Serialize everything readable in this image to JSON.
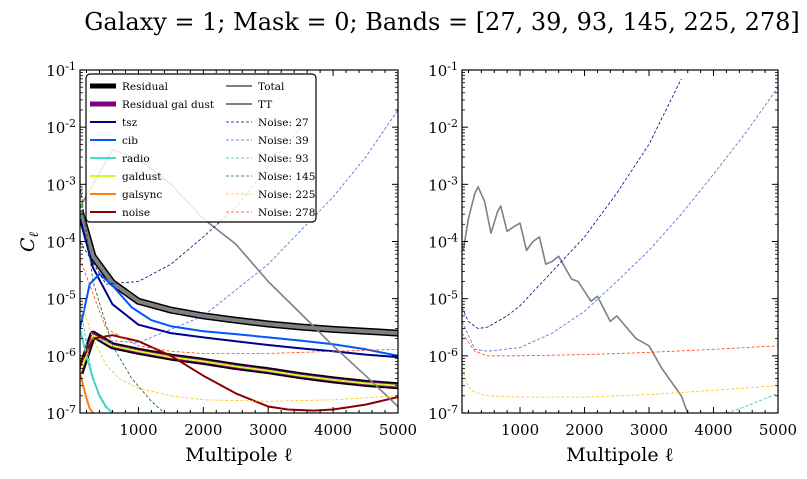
{
  "chart_data": {
    "type": "line",
    "title": "Galaxy = 1; Mask = 0; Bands = [27, 39, 93, 145, 225, 278]",
    "xlabel": "Multipole ℓ",
    "ylabel": "C_ℓ",
    "x_ticks": [
      1000,
      2000,
      3000,
      4000,
      5000
    ],
    "y_ticks": [
      "10^-7",
      "10^-6",
      "10^-5",
      "10^-4",
      "10^-3",
      "10^-2",
      "10^-1"
    ],
    "y_scale": "log",
    "xlim": [
      100,
      5000
    ],
    "ylim": [
      1e-07,
      0.1
    ],
    "legend_placement": "top-left",
    "panels": [
      {
        "series": [
          {
            "name": "Residual",
            "color": "#000000",
            "style": "thick",
            "x": [
              100,
              300,
              600,
              1000,
              1500,
              2000,
              2500,
              3000,
              3500,
              4000,
              4500,
              5000
            ],
            "y": [
              0.00035,
              5.5e-05,
              1.9e-05,
              9e-06,
              6.3e-06,
              5e-06,
              4.2e-06,
              3.6e-06,
              3.2e-06,
              2.9e-06,
              2.7e-06,
              2.5e-06
            ]
          },
          {
            "name": "Residual gal dust",
            "color": "#800080",
            "style": "thick",
            "x": [
              100,
              300,
              600,
              1000,
              1500,
              2000,
              2500,
              3000,
              3500,
              4000,
              4500,
              5000
            ],
            "y": [
              5e-07,
              2.4e-06,
              1.5e-06,
              1.2e-06,
              9.5e-07,
              8e-07,
              6.5e-07,
              5.5e-07,
              4.5e-07,
              3.8e-07,
              3.3e-07,
              3e-07
            ]
          },
          {
            "name": "tsz",
            "color": "#00008b",
            "x": [
              100,
              300,
              600,
              1000,
              1500,
              2000,
              2500,
              3000,
              3500,
              4000,
              4500,
              5000
            ],
            "y": [
              0.00025,
              3.5e-05,
              8e-06,
              3.5e-06,
              2.5e-06,
              2.1e-06,
              1.8e-06,
              1.55e-06,
              1.35e-06,
              1.2e-06,
              1.05e-06,
              9.5e-07
            ]
          },
          {
            "name": "cib",
            "color": "#0055ff",
            "x": [
              100,
              250,
              400,
              600,
              900,
              1200,
              1500,
              2000,
              2500,
              3000,
              3500,
              4000,
              4500,
              5000
            ],
            "y": [
              3e-06,
              1.8e-05,
              2.7e-05,
              1.7e-05,
              7e-06,
              4.2e-06,
              3.3e-06,
              2.7e-06,
              2.4e-06,
              2.1e-06,
              1.85e-06,
              1.6e-06,
              1.3e-06,
              1e-06
            ]
          },
          {
            "name": "radio",
            "color": "#40e0d0",
            "x": [
              100,
              200,
              300,
              400,
              500,
              600
            ],
            "y": [
              3e-06,
              1e-06,
              4e-07,
              2e-07,
              1.3e-07,
              1e-07
            ]
          },
          {
            "name": "galdust",
            "color": "#c8ff2a",
            "x": [
              100,
              300,
              600,
              1000,
              1500,
              2000,
              2500,
              3000,
              3500,
              4000,
              4500,
              5000
            ],
            "y": [
              5e-07,
              2.3e-06,
              1.5e-06,
              1.2e-06,
              9.5e-07,
              8e-07,
              6.5e-07,
              5.5e-07,
              4.5e-07,
              3.8e-07,
              3.3e-07,
              3e-07
            ]
          },
          {
            "name": "galsync",
            "color": "#ff7f0e",
            "x": [
              100,
              150,
              200,
              250,
              300
            ],
            "y": [
              5e-07,
              3e-07,
              1.8e-07,
              1.2e-07,
              1e-07
            ]
          },
          {
            "name": "noise",
            "color": "#8b0000",
            "x": [
              100,
              300,
              600,
              1000,
              1500,
              2000,
              2500,
              3000,
              3300,
              3700,
              4000,
              4500,
              5000
            ],
            "y": [
              7e-07,
              2e-06,
              2.3e-06,
              1.8e-06,
              1e-06,
              4.5e-07,
              2.2e-07,
              1.3e-07,
              1.15e-07,
              1.1e-07,
              1.15e-07,
              1.4e-07,
              1.9e-07
            ]
          },
          {
            "name": "Total",
            "color": "#808080",
            "x": [
              100,
              300,
              600,
              1000,
              1500,
              2000,
              2500,
              3000,
              3500,
              4000,
              4500,
              5000
            ],
            "y": [
              0.00035,
              5.5e-05,
              1.9e-05,
              9e-06,
              6.3e-06,
              5e-06,
              4.2e-06,
              3.6e-06,
              3.2e-06,
              2.9e-06,
              2.7e-06,
              2.5e-06
            ]
          },
          {
            "name": "TT",
            "color": "#808080",
            "x": [
              100,
              300,
              600,
              1000,
              1500,
              2000,
              2500,
              3000,
              3500,
              4000,
              4500,
              5000
            ],
            "y": [
              0.0004,
              0.001,
              0.004,
              0.0028,
              0.001,
              0.00025,
              9e-05,
              2e-05,
              5.5e-06,
              1.5e-06,
              4.5e-07,
              1.3e-07
            ]
          },
          {
            "name": "Noise: 27",
            "color": "#00008b",
            "style": "dashed",
            "x": [
              100,
              500,
              1000,
              1500,
              2000,
              2500,
              3000,
              3500
            ],
            "y": [
              0.0001,
              1.8e-05,
              2e-05,
              4e-05,
              0.00012,
              0.0004,
              0.002,
              0.01
            ]
          },
          {
            "name": "Noise: 39",
            "color": "#4169e1",
            "style": "dashed",
            "x": [
              100,
              1000,
              2000,
              3000,
              4000,
              4500,
              5000
            ],
            "y": [
              2e-06,
              1.7e-06,
              5e-06,
              4e-05,
              0.0006,
              0.003,
              0.02
            ]
          },
          {
            "name": "Noise: 93",
            "color": "#3cb4a0",
            "style": "dashed",
            "x": [
              100,
              200,
              300,
              400,
              500
            ],
            "y": [
              1e-05,
              1.5e-06,
              4e-07,
              2e-07,
              1.2e-07
            ]
          },
          {
            "name": "Noise: 145",
            "color": "#006400",
            "style": "dashed",
            "x": [
              100,
              300,
              600,
              900,
              1200,
              1400
            ],
            "y": [
              0.001,
              2e-05,
              1.5e-06,
              4e-07,
              1.6e-07,
              1e-07
            ]
          },
          {
            "name": "Noise: 225",
            "color": "#ffc000",
            "style": "dashed",
            "x": [
              100,
              300,
              500,
              700,
              1000,
              1500,
              2000,
              3000,
              4000,
              5000
            ],
            "y": [
              1e-05,
              2e-06,
              7e-07,
              4e-07,
              2.7e-07,
              2e-07,
              1.7e-07,
              1.6e-07,
              1.7e-07,
              2e-07
            ]
          },
          {
            "name": "Noise: 278",
            "color": "#ff4500",
            "style": "dashed",
            "x": [
              100,
              500,
              1000,
              1500,
              2000,
              3000,
              4000,
              5000
            ],
            "y": [
              5e-05,
              3e-06,
              1.5e-06,
              1.2e-06,
              1.1e-06,
              1.1e-06,
              1.2e-06,
              1.3e-06
            ]
          }
        ]
      },
      {
        "series": [
          {
            "name": "TT",
            "color": "#808080",
            "x": [
              120,
              200,
              300,
              350,
              450,
              550,
              650,
              700,
              800,
              900,
              1000,
              1100,
              1200,
              1300,
              1400,
              1500,
              1600,
              1800,
              1900,
              2100,
              2200,
              2400,
              2500,
              2800,
              3000,
              3200,
              3500,
              3600
            ],
            "y": [
              7e-05,
              0.00025,
              0.0007,
              0.0009,
              0.0005,
              0.00014,
              0.00033,
              0.00042,
              0.00015,
              0.00018,
              0.00021,
              7e-05,
              0.0001,
              0.00012,
              4e-05,
              4.5e-05,
              5.5e-05,
              2.2e-05,
              2e-05,
              9e-06,
              1.1e-05,
              4e-06,
              5e-06,
              2e-06,
              1.5e-06,
              6e-07,
              2e-07,
              1e-07
            ]
          },
          {
            "name": "Noise: 27",
            "color": "#00008b",
            "style": "dashed",
            "x": [
              100,
              200,
              350,
              500,
              800,
              1000,
              1500,
              2000,
              2500,
              3000,
              3500
            ],
            "y": [
              7e-06,
              4e-06,
              3e-06,
              3.2e-06,
              5e-06,
              7.5e-06,
              3e-05,
              0.00012,
              0.0007,
              0.005,
              0.07
            ]
          },
          {
            "name": "Noise: 39",
            "color": "#4169e1",
            "style": "dashed",
            "x": [
              100,
              300,
              500,
              1000,
              1500,
              2000,
              2500,
              3000,
              3500,
              4000,
              4500,
              5000
            ],
            "y": [
              4e-06,
              1.3e-06,
              1.2e-06,
              1.4e-06,
              2.5e-06,
              6e-06,
              2e-05,
              7e-05,
              0.0003,
              0.0015,
              0.008,
              0.05
            ]
          },
          {
            "name": "Noise: 278",
            "color": "#ff4500",
            "style": "dashed",
            "x": [
              100,
              300,
              500,
              1000,
              2000,
              3000,
              4000,
              5000
            ],
            "y": [
              2.5e-06,
              1.2e-06,
              1e-06,
              1e-06,
              1.05e-06,
              1.15e-06,
              1.3e-06,
              1.5e-06
            ]
          },
          {
            "name": "Noise: 225",
            "color": "#ffc000",
            "style": "dashed",
            "x": [
              100,
              200,
              300,
              500,
              1000,
              2000,
              3000,
              4000,
              5000
            ],
            "y": [
              6e-07,
              2.8e-07,
              2.3e-07,
              2e-07,
              1.9e-07,
              1.9e-07,
              2.1e-07,
              2.5e-07,
              3e-07
            ]
          },
          {
            "name": "Noise: 93",
            "color": "#3cb4a0",
            "style": "dashed",
            "x": [
              4200,
              4500,
              4800,
              5000
            ],
            "y": [
              1e-07,
              1.3e-07,
              1.8e-07,
              2.2e-07
            ]
          }
        ]
      }
    ]
  }
}
